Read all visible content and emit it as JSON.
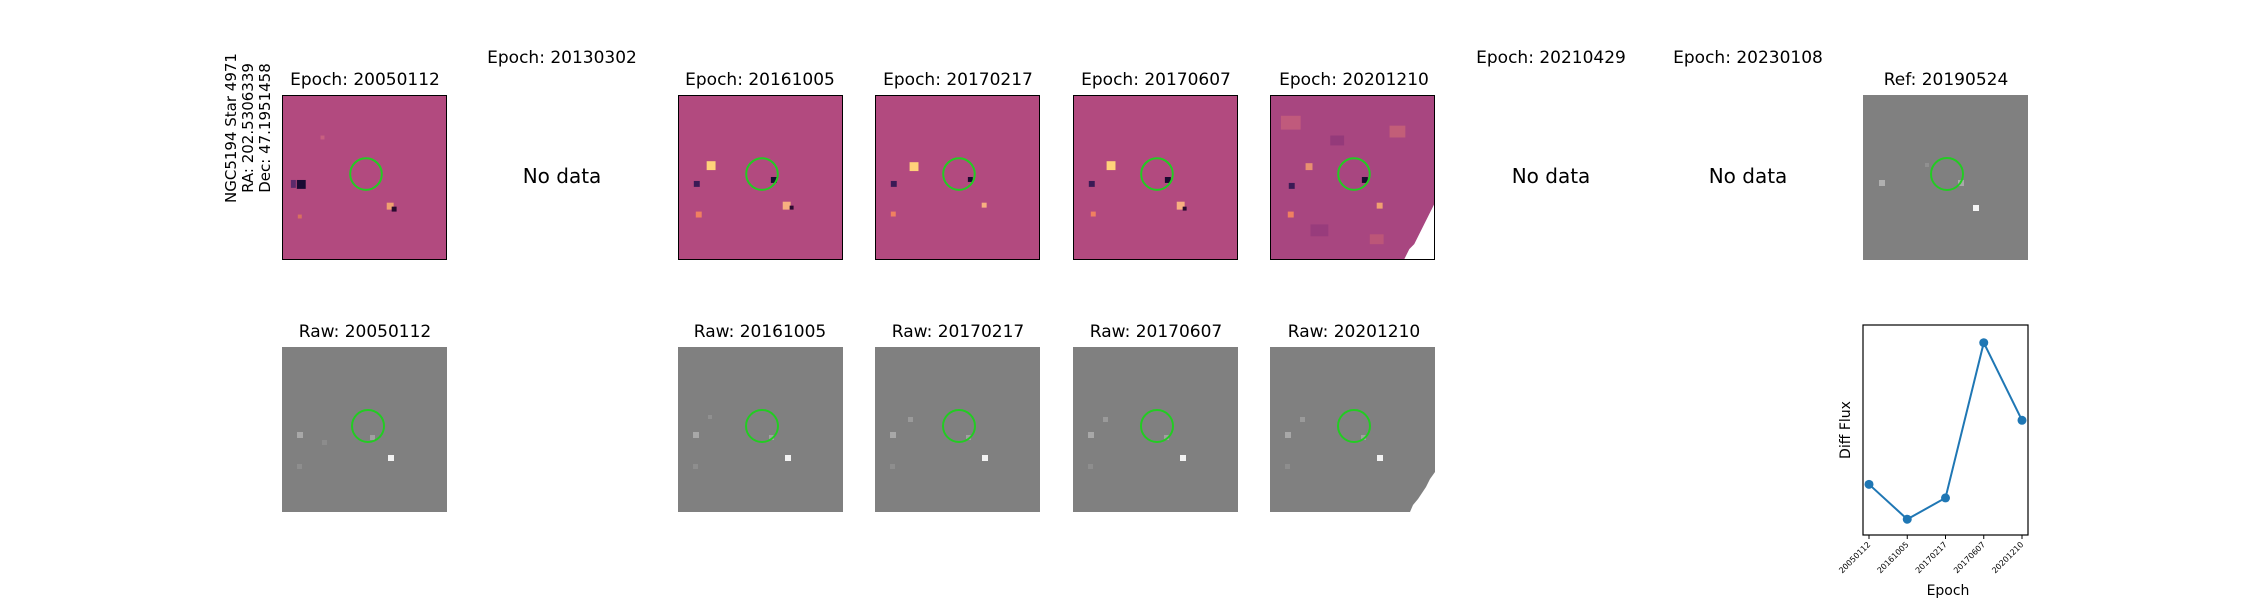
{
  "target": {
    "line1": "NGC5194 Star 4971",
    "line2": "RA: 202.5306339",
    "line3": "Dec: 47.1951458"
  },
  "colors": {
    "diff_background": "#b24a7f",
    "raw_background": "#808080",
    "ref_background": "#808080",
    "aperture": "#22cc22",
    "series": "#1f77b4"
  },
  "top_row": [
    {
      "title": "Epoch: 20050112",
      "has_data": true
    },
    {
      "title": "Epoch: 20130302",
      "has_data": false,
      "nodata": "No data"
    },
    {
      "title": "Epoch: 20161005",
      "has_data": true
    },
    {
      "title": "Epoch: 20170217",
      "has_data": true
    },
    {
      "title": "Epoch: 20170607",
      "has_data": true
    },
    {
      "title": "Epoch: 20201210",
      "has_data": true
    },
    {
      "title": "Epoch: 20210429",
      "has_data": false,
      "nodata": "No data"
    },
    {
      "title": "Epoch: 20230108",
      "has_data": false,
      "nodata": "No data"
    },
    {
      "title": "Ref: 20190524",
      "has_data": true
    }
  ],
  "bottom_row": [
    {
      "title": "Raw: 20050112"
    },
    {
      "title": "Raw: 20161005"
    },
    {
      "title": "Raw: 20170217"
    },
    {
      "title": "Raw: 20170607"
    },
    {
      "title": "Raw: 20201210"
    }
  ],
  "chart_data": {
    "type": "line",
    "x": [
      "20050112",
      "20161005",
      "20170217",
      "20170607",
      "20201210"
    ],
    "series": [
      {
        "values": [
          0.22,
          0.04,
          0.15,
          0.95,
          0.55
        ]
      }
    ],
    "xlabel": "Epoch",
    "ylabel": "Diff Flux",
    "ylim": [
      0,
      1
    ],
    "yticks_shown": false,
    "grid": false
  }
}
